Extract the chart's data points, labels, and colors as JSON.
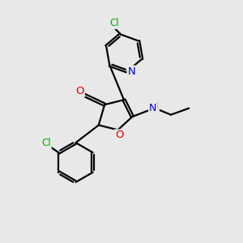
{
  "background_color": "#e8e8e8",
  "atom_colors": {
    "C": "#000000",
    "N": "#0000cd",
    "O": "#dd0000",
    "Cl": "#00aa00",
    "H": "#555555"
  },
  "line_color": "#000000",
  "line_width": 1.6,
  "figsize": [
    3.0,
    3.0
  ],
  "dpi": 100,
  "xlim": [
    0,
    10
  ],
  "ylim": [
    0,
    10
  ]
}
